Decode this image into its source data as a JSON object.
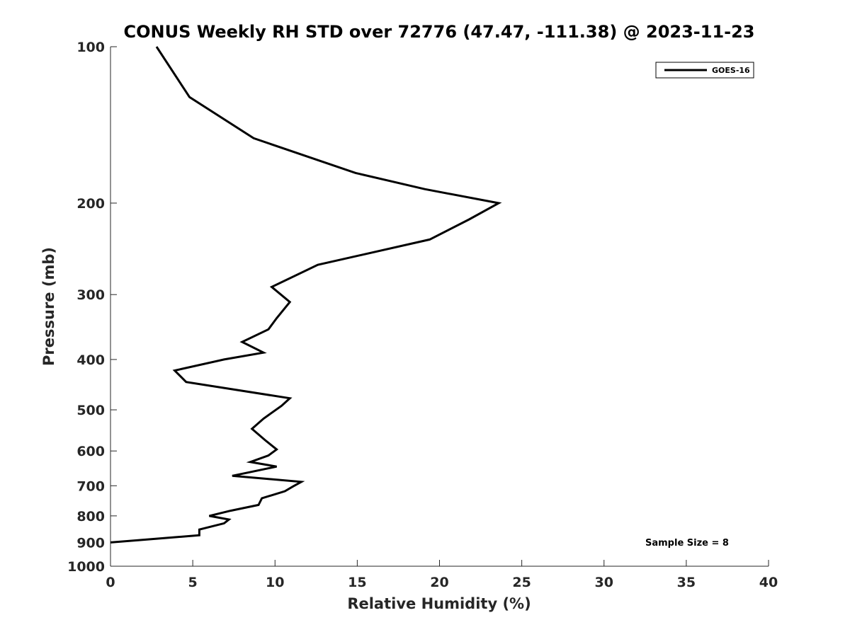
{
  "chart_data": {
    "type": "line",
    "title": "CONUS Weekly RH STD over 72776 (47.47, -111.38) @ 2023-11-23",
    "xlabel": "Relative Humidity (%)",
    "ylabel": "Pressure (mb)",
    "xlim": [
      0,
      40
    ],
    "ylim": [
      100,
      1000
    ],
    "y_scale": "log",
    "y_reversed": true,
    "grid": false,
    "legend_position": "top-right",
    "x_ticks": [
      "0",
      "5",
      "10",
      "15",
      "20",
      "25",
      "30",
      "35",
      "40"
    ],
    "y_ticks": [
      "100",
      "200",
      "300",
      "400",
      "500",
      "600",
      "700",
      "800",
      "900",
      "1000"
    ],
    "series": [
      {
        "name": "GOES-16",
        "color": "#000000",
        "points": [
          [
            2.8,
            100
          ],
          [
            4.8,
            125
          ],
          [
            8.7,
            150
          ],
          [
            14.9,
            175
          ],
          [
            19.1,
            188
          ],
          [
            23.6,
            200
          ],
          [
            21.8,
            215
          ],
          [
            19.4,
            235
          ],
          [
            12.6,
            263
          ],
          [
            9.8,
            290
          ],
          [
            10.9,
            310
          ],
          [
            10.1,
            333
          ],
          [
            9.6,
            350
          ],
          [
            8.0,
            370
          ],
          [
            9.3,
            388
          ],
          [
            6.9,
            400
          ],
          [
            3.9,
            420
          ],
          [
            4.6,
            442
          ],
          [
            10.9,
            475
          ],
          [
            10.4,
            491
          ],
          [
            9.3,
            520
          ],
          [
            8.6,
            544
          ],
          [
            9.4,
            572
          ],
          [
            10.1,
            596
          ],
          [
            9.6,
            612
          ],
          [
            8.5,
            630
          ],
          [
            10.1,
            643
          ],
          [
            7.4,
            670
          ],
          [
            11.6,
            688
          ],
          [
            11.1,
            702
          ],
          [
            10.6,
            717
          ],
          [
            9.2,
            740
          ],
          [
            9.0,
            762
          ],
          [
            7.3,
            782
          ],
          [
            6.0,
            800
          ],
          [
            7.2,
            813
          ],
          [
            6.9,
            827
          ],
          [
            5.4,
            850
          ],
          [
            5.4,
            872
          ],
          [
            0,
            900
          ]
        ]
      }
    ],
    "annotation": "Sample Size = 8"
  }
}
